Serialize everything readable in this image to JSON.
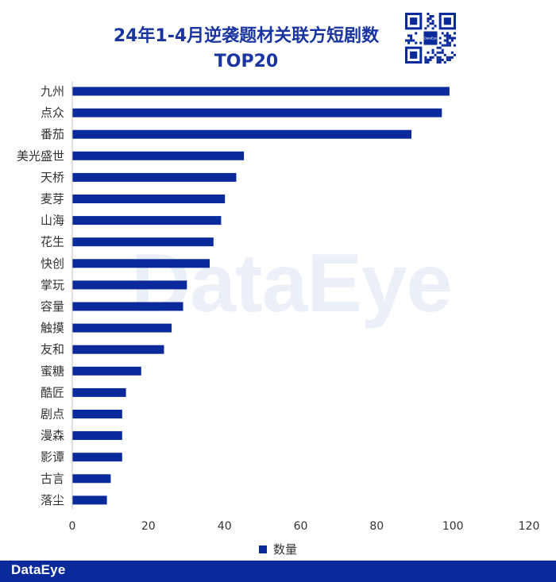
{
  "brand": {
    "name": "DataEye",
    "accent": "#0a2a9c",
    "title_color": "#1a35a0",
    "qr_center_label": "DataEye"
  },
  "legend": {
    "placement": "bottom"
  },
  "chart_data": {
    "type": "bar",
    "orientation": "horizontal",
    "title": "24年1-4月逆袭题材关联方短剧数",
    "subtitle": "TOP20",
    "categories": [
      "九州",
      "点众",
      "番茄",
      "美光盛世",
      "天桥",
      "麦芽",
      "山海",
      "花生",
      "快创",
      "掌玩",
      "容量",
      "触摸",
      "友和",
      "蜜糖",
      "酷匠",
      "剧点",
      "漫森",
      "影谭",
      "古言",
      "落尘"
    ],
    "series": [
      {
        "name": "数量",
        "color": "#0a2a9c",
        "values": [
          99,
          97,
          89,
          45,
          43,
          40,
          39,
          37,
          36,
          30,
          29,
          26,
          24,
          18,
          14,
          13,
          13,
          13,
          10,
          9
        ]
      }
    ],
    "xlim": [
      0,
      120
    ],
    "x_ticks": [
      "0",
      "20",
      "40",
      "60",
      "80",
      "100",
      "120"
    ],
    "grid": false
  }
}
